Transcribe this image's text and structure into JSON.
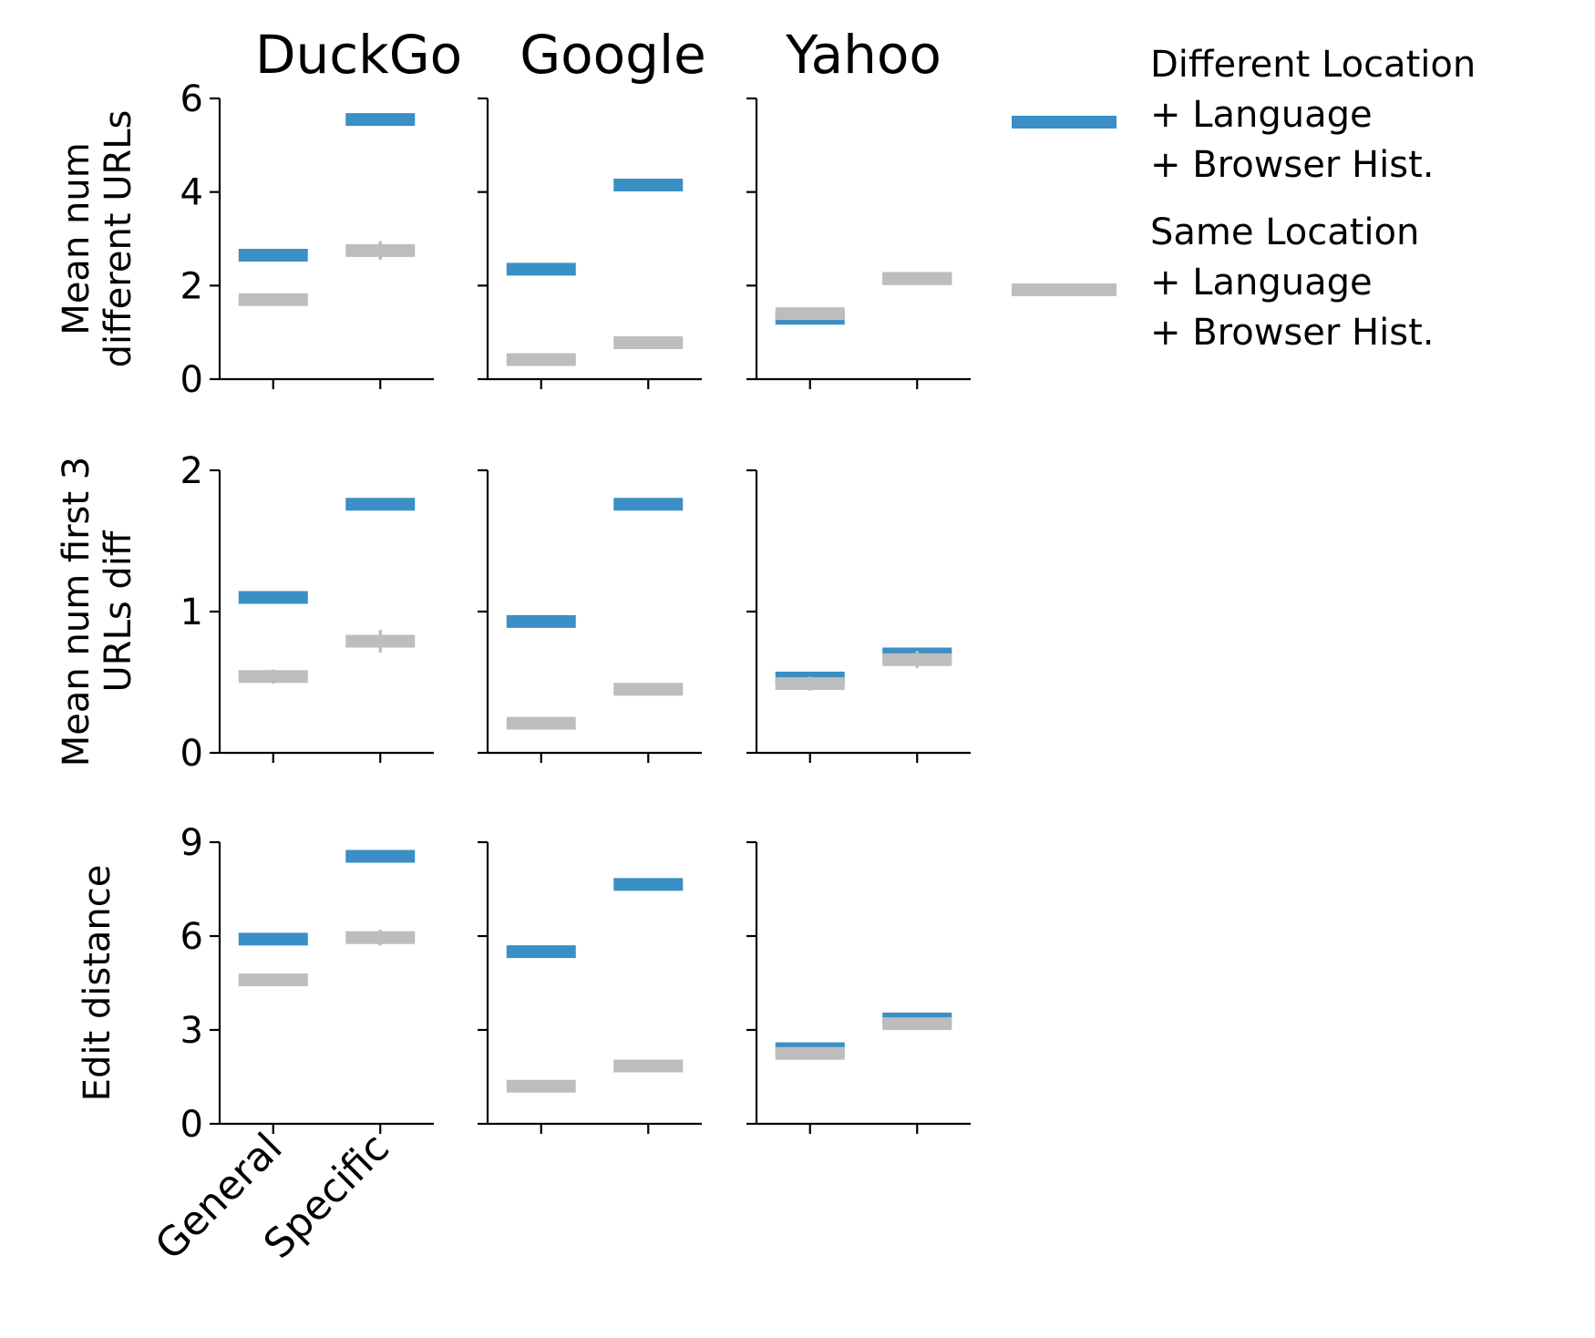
{
  "chart_data": {
    "type": "line",
    "layout": "grid 3 rows x 3 columns, shared x categories, row-shared y axes",
    "engines": [
      "DuckGo",
      "Google",
      "Yahoo"
    ],
    "categories": [
      "General",
      "Specific"
    ],
    "rows": [
      {
        "ylabel": "Mean num\ndifferent URLs",
        "ylim": [
          0,
          6
        ],
        "yticks": [
          "0",
          "2",
          "4",
          "6"
        ],
        "ytick_values": [
          0,
          2,
          4,
          6
        ]
      },
      {
        "ylabel": "Mean num first 3\nURLs diff",
        "ylim": [
          0,
          2
        ],
        "yticks": [
          "0",
          "1",
          "2"
        ],
        "ytick_values": [
          0,
          1,
          2
        ]
      },
      {
        "ylabel": "Edit distance",
        "ylim": [
          0,
          9
        ],
        "yticks": [
          "0",
          "3",
          "6",
          "9"
        ],
        "ytick_values": [
          0,
          3,
          6,
          9
        ]
      }
    ],
    "series": [
      {
        "name": "Different Location\n+ Language\n+ Browser Hist.",
        "color": "#3a8fc4",
        "values": [
          [
            [
              2.65,
              5.55
            ],
            [
              2.35,
              4.15
            ],
            [
              1.3,
              2.15
            ]
          ],
          [
            [
              1.1,
              1.76
            ],
            [
              0.93,
              1.76
            ],
            [
              0.53,
              0.7
            ]
          ],
          [
            [
              5.9,
              8.55
            ],
            [
              5.5,
              7.65
            ],
            [
              2.4,
              3.35
            ]
          ]
        ],
        "errors": [
          [
            [
              0.05,
              0.05
            ],
            [
              0.05,
              0.05
            ],
            [
              0.03,
              0.05
            ]
          ],
          [
            [
              0.02,
              0.04
            ],
            [
              0.02,
              0.02
            ],
            [
              0.02,
              0.02
            ]
          ],
          [
            [
              0.1,
              0.1
            ],
            [
              0.1,
              0.1
            ],
            [
              0.05,
              0.05
            ]
          ]
        ]
      },
      {
        "name": "Same Location\n+ Language\n+ Browser Hist.",
        "color": "#bdbdbd",
        "values": [
          [
            [
              1.7,
              2.75
            ],
            [
              0.42,
              0.78
            ],
            [
              1.4,
              2.15
            ]
          ],
          [
            [
              0.54,
              0.79
            ],
            [
              0.21,
              0.45
            ],
            [
              0.49,
              0.66
            ]
          ],
          [
            [
              4.6,
              5.95
            ],
            [
              1.2,
              1.85
            ],
            [
              2.25,
              3.2
            ]
          ]
        ],
        "errors": [
          [
            [
              0.08,
              0.2
            ],
            [
              0.03,
              0.04
            ],
            [
              0.05,
              0.08
            ]
          ],
          [
            [
              0.05,
              0.08
            ],
            [
              0.02,
              0.03
            ],
            [
              0.05,
              0.06
            ]
          ],
          [
            [
              0.15,
              0.25
            ],
            [
              0.08,
              0.08
            ],
            [
              0.1,
              0.1
            ]
          ]
        ]
      }
    ],
    "legend_position": "right of top row",
    "grid": false
  }
}
